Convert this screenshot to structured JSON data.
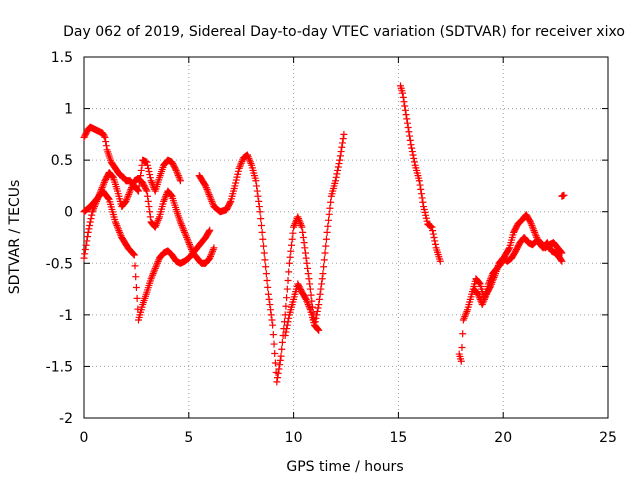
{
  "chart_data": {
    "type": "scatter",
    "title": "Day 062 of 2019, Sidereal Day-to-day VTEC variation (SDTVAR) for receiver xixo",
    "xlabel": "GPS time / hours",
    "ylabel": "SDTVAR / TECUs",
    "xlim": [
      0,
      25
    ],
    "ylim": [
      -2,
      1.5
    ],
    "xticks": [
      0,
      5,
      10,
      15,
      20,
      25
    ],
    "xtick_labels": [
      "0",
      "5",
      "10",
      "15",
      "20",
      "25"
    ],
    "yticks": [
      -2,
      -1.5,
      -1,
      -0.5,
      0,
      0.5,
      1,
      1.5
    ],
    "ytick_labels": [
      "-2",
      "-1.5",
      "-1",
      "-0.5",
      "0",
      "0.5",
      "1",
      "1.5"
    ],
    "grid": true,
    "marker": "+",
    "color": "#ff0000",
    "series": [
      {
        "x": [
          0.0,
          0.1,
          0.2,
          0.3,
          0.5,
          0.7,
          0.9,
          1.0,
          1.1,
          1.3,
          1.5,
          1.7,
          1.9,
          2.0,
          2.2,
          2.4,
          2.6,
          2.8,
          3.0,
          3.2,
          3.4,
          3.6,
          3.8,
          4.0,
          4.2,
          4.4,
          4.6
        ],
        "y": [
          0.72,
          0.76,
          0.8,
          0.82,
          0.8,
          0.78,
          0.76,
          0.72,
          0.6,
          0.48,
          0.42,
          0.36,
          0.33,
          0.3,
          0.3,
          0.25,
          0.2,
          0.5,
          0.48,
          0.3,
          0.2,
          0.33,
          0.45,
          0.5,
          0.48,
          0.4,
          0.3
        ]
      },
      {
        "x": [
          0.0,
          0.2,
          0.4,
          0.6,
          0.8,
          1.0,
          1.2,
          1.4,
          1.6,
          1.8,
          2.0,
          2.2,
          2.4,
          2.6,
          2.8,
          3.0,
          3.2,
          3.4,
          3.6,
          3.8,
          4.0,
          4.2,
          4.4,
          4.6,
          4.8,
          5.0,
          5.2,
          5.4,
          5.6,
          5.8,
          6.0,
          6.2
        ],
        "y": [
          -0.45,
          -0.2,
          0.0,
          0.1,
          0.2,
          0.3,
          0.38,
          0.33,
          0.2,
          0.05,
          0.1,
          0.2,
          0.3,
          0.32,
          0.28,
          0.2,
          -0.1,
          -0.15,
          -0.05,
          0.1,
          0.2,
          0.15,
          0.02,
          -0.1,
          -0.2,
          -0.3,
          -0.4,
          -0.45,
          -0.5,
          -0.5,
          -0.45,
          -0.35
        ]
      },
      {
        "x": [
          0.0,
          0.3,
          0.6,
          0.9,
          1.2,
          1.5,
          1.8,
          2.1,
          2.4,
          2.6,
          2.8,
          3.0,
          3.2,
          3.4,
          3.6,
          3.8,
          4.0,
          4.2,
          4.4,
          4.6,
          4.8,
          5.0,
          5.2,
          5.4,
          5.6,
          5.8,
          6.0
        ],
        "y": [
          0.0,
          0.05,
          0.12,
          0.2,
          0.12,
          -0.1,
          -0.25,
          -0.35,
          -0.42,
          -1.05,
          -0.9,
          -0.78,
          -0.65,
          -0.55,
          -0.45,
          -0.4,
          -0.38,
          -0.42,
          -0.48,
          -0.5,
          -0.48,
          -0.45,
          -0.4,
          -0.35,
          -0.3,
          -0.25,
          -0.18
        ]
      },
      {
        "x": [
          5.5,
          5.8,
          6.0,
          6.2,
          6.5,
          6.8,
          7.0,
          7.2,
          7.4,
          7.6,
          7.8,
          8.0,
          8.2,
          8.4,
          8.6,
          8.8,
          9.0,
          9.2,
          9.4,
          9.6,
          9.8,
          10.0,
          10.2,
          10.4,
          10.6,
          10.8,
          11.0,
          11.2,
          11.4,
          11.6,
          11.8,
          12.0,
          12.2,
          12.4
        ],
        "y": [
          0.35,
          0.25,
          0.15,
          0.05,
          0.0,
          0.02,
          0.1,
          0.25,
          0.42,
          0.52,
          0.55,
          0.45,
          0.3,
          0.0,
          -0.4,
          -0.8,
          -1.1,
          -1.65,
          -1.4,
          -1.0,
          -0.5,
          -0.15,
          -0.05,
          -0.15,
          -0.45,
          -0.75,
          -1.1,
          -0.9,
          -0.6,
          -0.2,
          0.15,
          0.3,
          0.5,
          0.75
        ]
      },
      {
        "x": [
          9.6,
          9.8,
          10.0,
          10.2,
          10.4,
          10.6,
          10.8,
          11.0,
          11.2
        ],
        "y": [
          -1.2,
          -1.0,
          -0.85,
          -0.7,
          -0.78,
          -0.85,
          -0.95,
          -1.1,
          -1.15
        ]
      },
      {
        "x": [
          15.1,
          15.2,
          15.4,
          15.6,
          15.8,
          16.0,
          16.2,
          16.4,
          16.6,
          16.8,
          17.0
        ],
        "y": [
          1.22,
          1.15,
          0.9,
          0.65,
          0.45,
          0.3,
          0.05,
          -0.12,
          -0.15,
          -0.35,
          -0.48
        ]
      },
      {
        "x": [
          17.9,
          18.0,
          18.1,
          18.3,
          18.5,
          18.7,
          18.9,
          19.1,
          19.3,
          19.5,
          19.7,
          19.9,
          20.1,
          20.3,
          20.5,
          20.7,
          20.9,
          21.1,
          21.3,
          21.5,
          21.7,
          21.9,
          22.1,
          22.3,
          22.5,
          22.7,
          22.8
        ],
        "y": [
          -1.38,
          -1.45,
          -1.05,
          -0.95,
          -0.8,
          -0.65,
          -0.7,
          -0.85,
          -0.7,
          -0.6,
          -0.55,
          -0.5,
          -0.42,
          -0.35,
          -0.2,
          -0.12,
          -0.08,
          -0.03,
          -0.1,
          -0.2,
          -0.3,
          -0.35,
          -0.3,
          -0.38,
          -0.4,
          -0.45,
          -0.48
        ]
      },
      {
        "x": [
          18.6,
          18.8,
          19.0,
          19.2,
          19.4,
          19.6,
          19.8,
          20.0,
          20.2,
          20.4,
          20.6,
          20.8,
          21.0,
          21.2,
          21.4,
          21.6,
          21.8,
          22.0,
          22.2,
          22.4,
          22.6,
          22.8
        ],
        "y": [
          -0.75,
          -0.8,
          -0.9,
          -0.8,
          -0.72,
          -0.62,
          -0.5,
          -0.45,
          -0.48,
          -0.45,
          -0.38,
          -0.3,
          -0.25,
          -0.3,
          -0.32,
          -0.28,
          -0.3,
          -0.35,
          -0.32,
          -0.3,
          -0.35,
          -0.4
        ]
      },
      {
        "x": [
          22.8,
          22.9
        ],
        "y": [
          0.15,
          0.16
        ]
      }
    ]
  }
}
